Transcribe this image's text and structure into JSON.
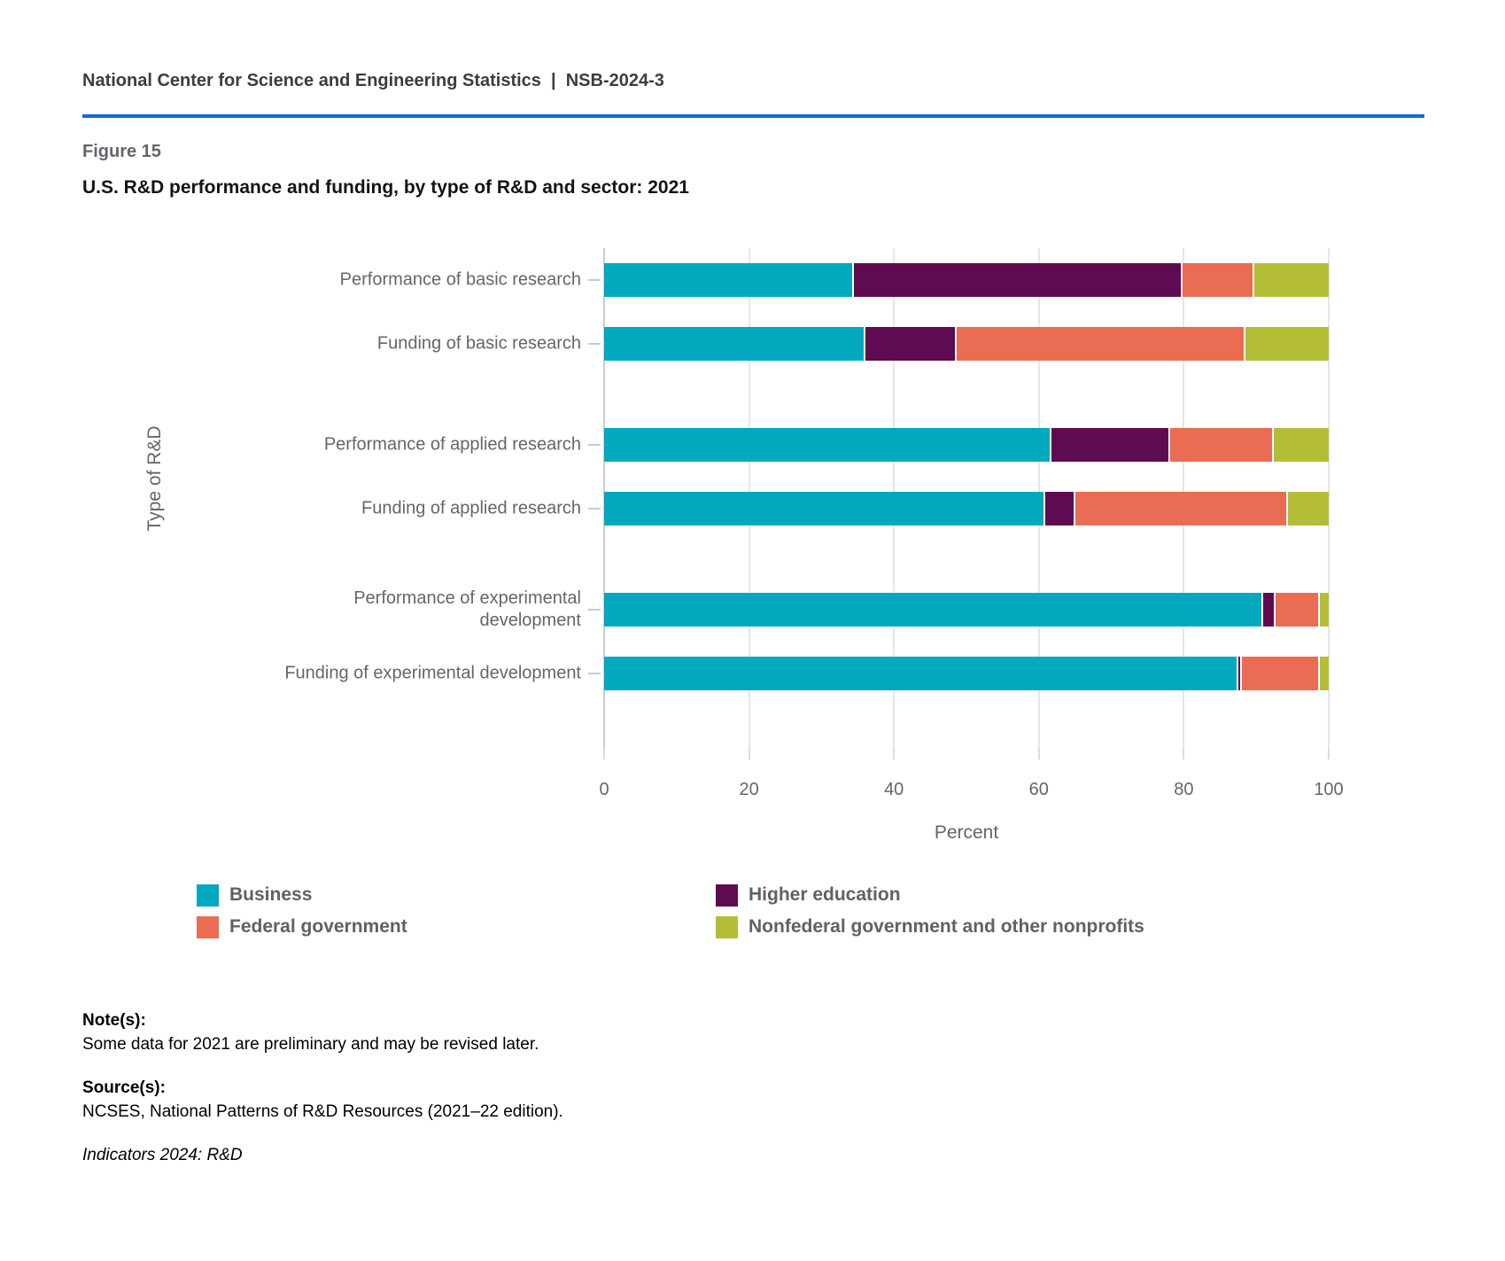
{
  "header": {
    "text": "National Center for Science and Engineering Statistics  |  NSB-2024-3"
  },
  "figure": {
    "label": "Figure 15",
    "title": "U.S. R&D performance and funding, by type of R&D and sector: 2021"
  },
  "chart_data": {
    "type": "bar",
    "orientation": "horizontal",
    "stacked": true,
    "title": "U.S. R&D performance and funding, by type of R&D and sector: 2021",
    "categories": [
      "Performance of basic research",
      "Funding of basic research",
      "Performance of applied research",
      "Funding of applied research",
      "Performance of experimental development",
      "Funding of experimental development"
    ],
    "series": [
      {
        "name": "Business",
        "color": "#00a9be",
        "values": [
          34.2,
          35.8,
          61.5,
          60.6,
          90.7,
          87.3
        ]
      },
      {
        "name": "Higher education",
        "color": "#5e0b52",
        "values": [
          45.4,
          12.6,
          16.4,
          4.2,
          1.7,
          0.5
        ]
      },
      {
        "name": "Federal government",
        "color": "#e96c53",
        "values": [
          9.9,
          39.9,
          14.3,
          29.3,
          6.1,
          10.7
        ]
      },
      {
        "name": "Nonfederal government and other nonprofits",
        "color": "#b4bd36",
        "values": [
          10.5,
          11.7,
          7.8,
          5.9,
          1.5,
          1.5
        ]
      }
    ],
    "xlabel": "Percent",
    "ylabel": "Type of R&D",
    "xlim": [
      0,
      100
    ],
    "xticks": [
      0,
      20,
      40,
      60,
      80,
      100
    ],
    "grid": true,
    "legend_position": "bottom"
  },
  "legend": {
    "items": [
      {
        "label": "Business",
        "color": "#00a9be"
      },
      {
        "label": "Federal government",
        "color": "#e96c53"
      },
      {
        "label": "Higher education",
        "color": "#5e0b52"
      },
      {
        "label": "Nonfederal government and other nonprofits",
        "color": "#b4bd36"
      }
    ]
  },
  "notes": {
    "notes_label": "Note(s):",
    "notes_text": "Some data for 2021 are preliminary and may be revised later.",
    "sources_label": "Source(s):",
    "sources_text": "NCSES, National Patterns of R&D Resources (2021–22 edition).",
    "credit": "Indicators 2024: R&D"
  }
}
